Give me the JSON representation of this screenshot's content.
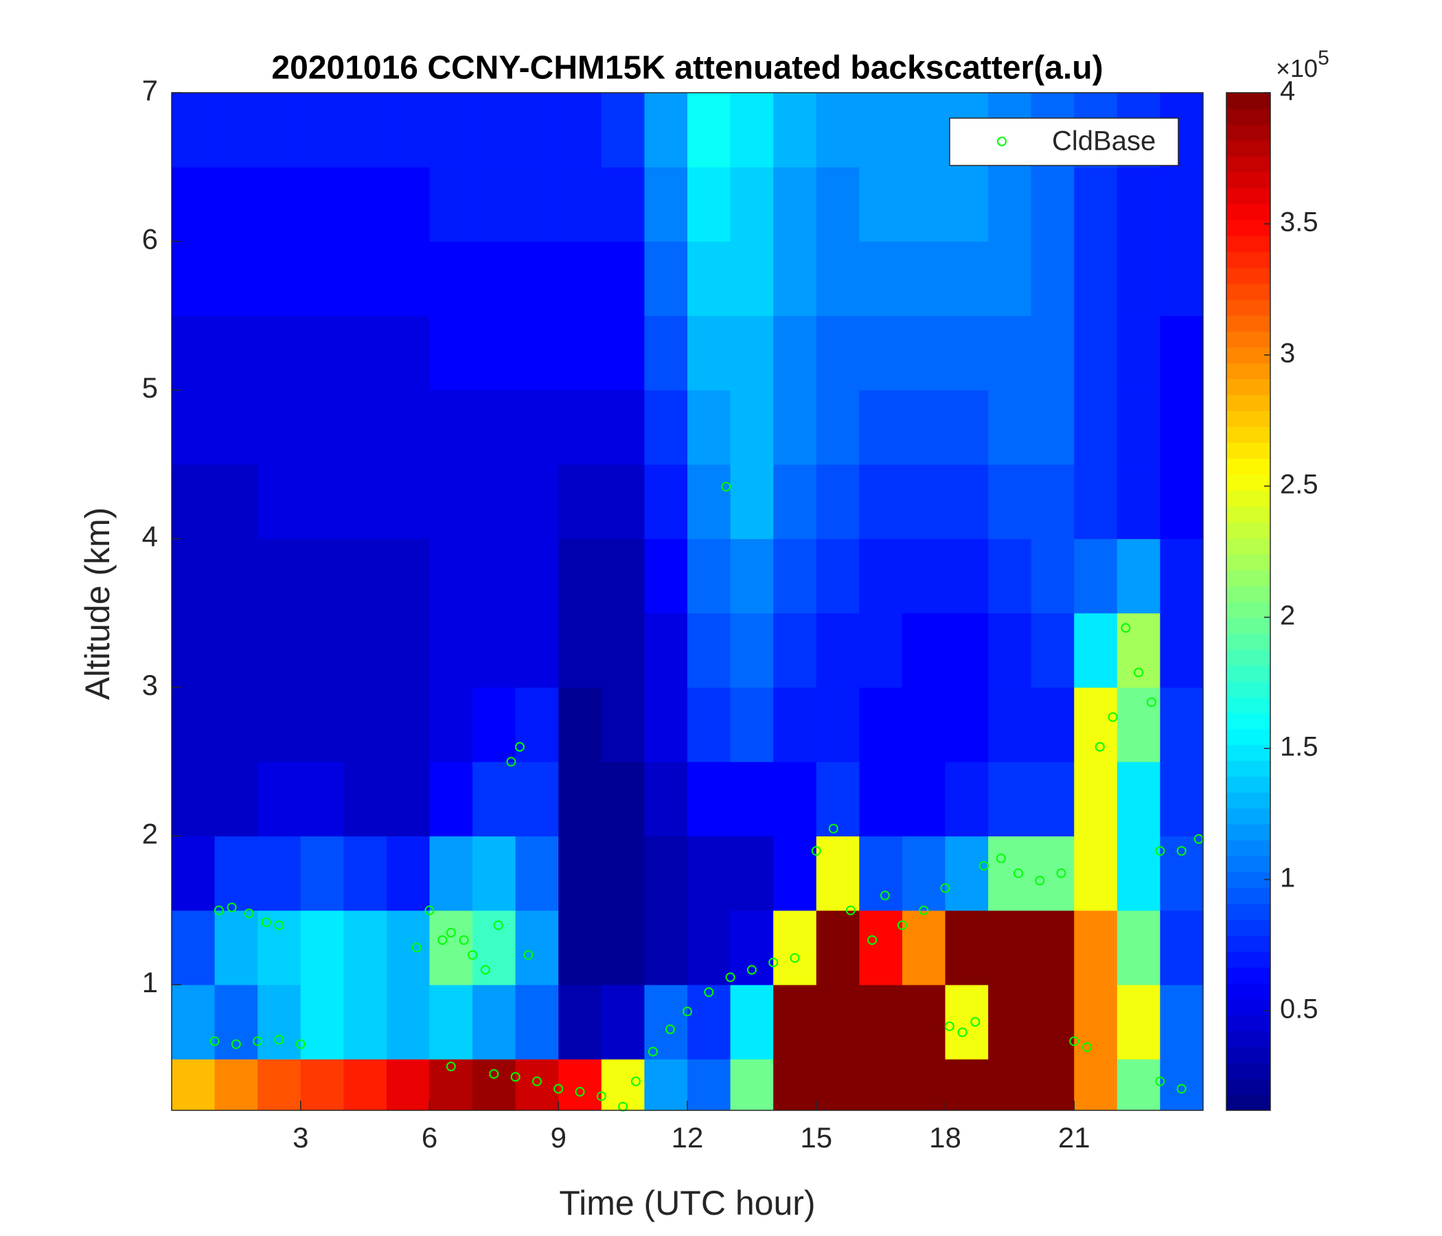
{
  "chart_data": {
    "type": "heatmap",
    "title": "20201016 CCNY-CHM15K attenuated backscatter(a.u)",
    "xlabel": "Time (UTC hour)",
    "ylabel": "Altitude (km)",
    "xlim": [
      0,
      24
    ],
    "ylim": [
      0.155,
      7
    ],
    "xticks": [
      3,
      6,
      9,
      12,
      15,
      18,
      21
    ],
    "yticks": [
      1,
      2,
      3,
      4,
      5,
      6,
      7
    ],
    "colormap": "jet",
    "x_bins": [
      0,
      1,
      2,
      3,
      4,
      5,
      6,
      7,
      8,
      9,
      10,
      11,
      12,
      13,
      14,
      15,
      16,
      17,
      18,
      19,
      20,
      21,
      22,
      23,
      24
    ],
    "y_bins": [
      0.155,
      0.5,
      1,
      1.5,
      2,
      2.5,
      3,
      3.5,
      4,
      4.5,
      5,
      5.5,
      6,
      6.5,
      7
    ],
    "z": [
      [
        2.8,
        3.0,
        3.2,
        3.3,
        3.4,
        3.6,
        3.8,
        3.9,
        3.7,
        3.5,
        2.5,
        1.2,
        1.0,
        2.0,
        4,
        4,
        4,
        4,
        4,
        4,
        4,
        3.0,
        2.0,
        1.0
      ],
      [
        1.2,
        1.0,
        1.3,
        1.5,
        1.4,
        1.3,
        1.4,
        1.2,
        1.0,
        0.3,
        0.4,
        1.0,
        0.8,
        1.5,
        4,
        4,
        4,
        4,
        2.5,
        4,
        4,
        3.0,
        2.5,
        1.0
      ],
      [
        0.9,
        1.3,
        1.4,
        1.5,
        1.4,
        1.3,
        2.0,
        1.8,
        1.2,
        0.2,
        0.2,
        0.3,
        0.4,
        0.5,
        2.5,
        4,
        3.5,
        3.0,
        4,
        4,
        4,
        3.0,
        2.0,
        0.8
      ],
      [
        0.5,
        0.8,
        0.8,
        0.9,
        0.8,
        0.7,
        1.2,
        1.3,
        1.0,
        0.2,
        0.2,
        0.3,
        0.4,
        0.4,
        0.6,
        2.5,
        0.9,
        1.0,
        1.2,
        2.0,
        2.0,
        2.5,
        1.5,
        0.9
      ],
      [
        0.4,
        0.4,
        0.5,
        0.5,
        0.4,
        0.4,
        0.6,
        0.8,
        0.8,
        0.2,
        0.2,
        0.4,
        0.6,
        0.6,
        0.6,
        0.8,
        0.6,
        0.6,
        0.7,
        0.8,
        0.8,
        2.5,
        1.5,
        0.8
      ],
      [
        0.4,
        0.4,
        0.4,
        0.4,
        0.4,
        0.4,
        0.5,
        0.6,
        0.7,
        0.2,
        0.3,
        0.5,
        0.8,
        0.9,
        0.7,
        0.7,
        0.6,
        0.6,
        0.6,
        0.7,
        0.7,
        2.5,
        2.0,
        0.8
      ],
      [
        0.4,
        0.4,
        0.4,
        0.4,
        0.4,
        0.4,
        0.5,
        0.5,
        0.5,
        0.3,
        0.3,
        0.5,
        0.9,
        1.0,
        0.8,
        0.7,
        0.7,
        0.6,
        0.6,
        0.7,
        0.8,
        1.5,
        2.2,
        0.7
      ],
      [
        0.4,
        0.4,
        0.4,
        0.4,
        0.4,
        0.4,
        0.5,
        0.5,
        0.5,
        0.3,
        0.3,
        0.6,
        1.0,
        1.1,
        0.9,
        0.8,
        0.7,
        0.7,
        0.7,
        0.8,
        0.9,
        1.0,
        1.2,
        0.7
      ],
      [
        0.4,
        0.4,
        0.5,
        0.5,
        0.5,
        0.5,
        0.5,
        0.5,
        0.5,
        0.4,
        0.4,
        0.7,
        1.1,
        1.3,
        1.0,
        0.9,
        0.8,
        0.8,
        0.8,
        0.9,
        0.9,
        0.8,
        0.7,
        0.6
      ],
      [
        0.5,
        0.5,
        0.5,
        0.5,
        0.5,
        0.5,
        0.5,
        0.5,
        0.5,
        0.5,
        0.5,
        0.8,
        1.2,
        1.3,
        1.1,
        1.0,
        0.9,
        0.9,
        0.9,
        1.0,
        1.0,
        0.8,
        0.7,
        0.6
      ],
      [
        0.5,
        0.5,
        0.5,
        0.5,
        0.5,
        0.5,
        0.6,
        0.6,
        0.6,
        0.6,
        0.6,
        0.9,
        1.3,
        1.3,
        1.1,
        1.0,
        1.0,
        1.0,
        1.0,
        1.0,
        1.0,
        0.8,
        0.7,
        0.6
      ],
      [
        0.6,
        0.6,
        0.6,
        0.6,
        0.6,
        0.6,
        0.6,
        0.6,
        0.6,
        0.6,
        0.6,
        1.0,
        1.4,
        1.4,
        1.2,
        1.1,
        1.1,
        1.1,
        1.1,
        1.1,
        1.0,
        0.8,
        0.7,
        0.7
      ],
      [
        0.6,
        0.6,
        0.6,
        0.6,
        0.6,
        0.6,
        0.7,
        0.7,
        0.7,
        0.7,
        0.7,
        1.1,
        1.5,
        1.4,
        1.2,
        1.1,
        1.2,
        1.2,
        1.2,
        1.1,
        1.0,
        0.8,
        0.7,
        0.7
      ],
      [
        0.7,
        0.7,
        0.7,
        0.7,
        0.7,
        0.7,
        0.7,
        0.7,
        0.7,
        0.7,
        0.8,
        1.2,
        1.6,
        1.5,
        1.3,
        1.2,
        1.2,
        1.2,
        1.2,
        1.1,
        1.0,
        0.9,
        0.8,
        0.7
      ]
    ],
    "colorbar": {
      "lim": [
        0.12,
        4
      ],
      "ticks": [
        0.5,
        1,
        1.5,
        2,
        2.5,
        3,
        3.5,
        4
      ],
      "multiplier_prefix": "×10",
      "multiplier_exponent": 5
    },
    "legend": "northeast",
    "series": [
      {
        "name": "CldBase",
        "color": "#00ff00",
        "marker": "open-circle",
        "x": [
          1.1,
          1.4,
          1.8,
          2.2,
          2.5,
          1.0,
          1.5,
          2.0,
          2.5,
          3.0,
          5.7,
          6.0,
          6.3,
          6.5,
          6.8,
          7.0,
          7.3,
          7.6,
          7.9,
          8.1,
          8.3,
          6.5,
          7.5,
          8.0,
          8.5,
          9.0,
          9.5,
          10.0,
          10.5,
          10.8,
          11.2,
          11.6,
          12.0,
          12.5,
          13.0,
          13.5,
          14.0,
          14.5,
          12.9,
          15.0,
          15.4,
          15.8,
          16.3,
          16.6,
          17.0,
          17.5,
          18.0,
          18.1,
          18.4,
          18.7,
          18.9,
          19.3,
          19.7,
          20.2,
          20.7,
          21.0,
          21.3,
          21.6,
          21.9,
          22.2,
          22.5,
          22.8,
          23.0,
          23.5,
          23.0,
          23.5,
          23.9
        ],
        "values": [
          1.5,
          1.52,
          1.48,
          1.42,
          1.4,
          0.62,
          0.6,
          0.62,
          0.63,
          0.6,
          1.25,
          1.5,
          1.3,
          1.35,
          1.3,
          1.2,
          1.1,
          1.4,
          2.5,
          2.6,
          1.2,
          0.45,
          0.4,
          0.38,
          0.35,
          0.3,
          0.28,
          0.25,
          0.18,
          0.35,
          0.55,
          0.7,
          0.82,
          0.95,
          1.05,
          1.1,
          1.15,
          1.18,
          4.35,
          1.9,
          2.05,
          1.5,
          1.3,
          1.6,
          1.4,
          1.5,
          1.65,
          0.72,
          0.68,
          0.75,
          1.8,
          1.85,
          1.75,
          1.7,
          1.75,
          0.62,
          0.58,
          2.6,
          2.8,
          3.4,
          3.1,
          2.9,
          1.9,
          1.9,
          0.35,
          0.3,
          1.98
        ]
      }
    ]
  }
}
